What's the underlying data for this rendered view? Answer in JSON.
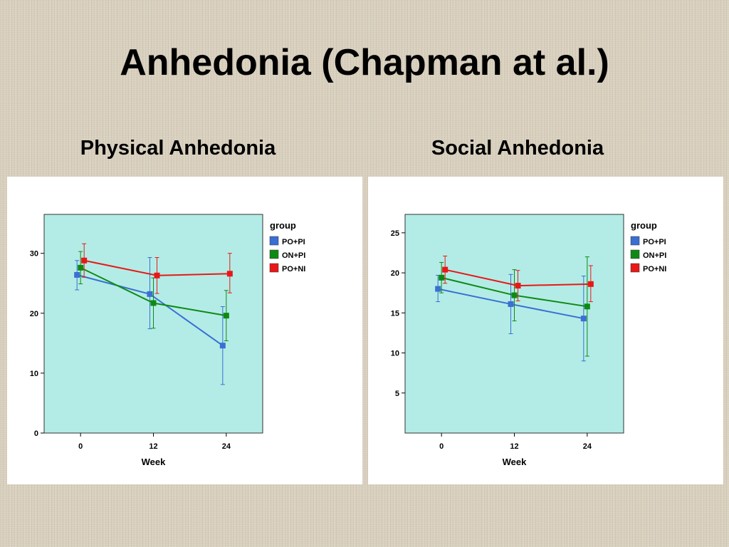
{
  "slide": {
    "title": "Anhedonia (Chapman at al.)",
    "left_heading": "Physical Anhedonia",
    "right_heading": "Social Anhedonia"
  },
  "colors": {
    "plot_background": "#b3ece6",
    "PO+PI": "#3a6fd3",
    "ON+PI": "#0e8a14",
    "PO+NI": "#e81818"
  },
  "chart_data": [
    {
      "type": "line",
      "title": "Physical Anhedonia",
      "xlabel": "Week",
      "ylabel": "",
      "x": [
        0,
        12,
        24
      ],
      "x_tick_labels": [
        "0",
        "12",
        "24"
      ],
      "xlim": [
        -6,
        30
      ],
      "ylim": [
        0,
        36.5
      ],
      "y_ticks": [
        0,
        10,
        20,
        30
      ],
      "y_tick_labels": [
        "0",
        "10",
        "20",
        "30"
      ],
      "legend_title": "group",
      "legend_position": "right",
      "grid": false,
      "series": [
        {
          "name": "PO+PI",
          "values": [
            26.4,
            23.2,
            14.6
          ],
          "lower": [
            23.9,
            17.4,
            8.1
          ],
          "upper": [
            28.8,
            29.3,
            21.1
          ]
        },
        {
          "name": "ON+PI",
          "values": [
            27.6,
            21.7,
            19.6
          ],
          "lower": [
            24.9,
            17.5,
            15.4
          ],
          "upper": [
            30.3,
            25.9,
            23.8
          ]
        },
        {
          "name": "PO+NI",
          "values": [
            28.8,
            26.3,
            26.6
          ],
          "lower": [
            26.0,
            23.3,
            23.4
          ],
          "upper": [
            31.6,
            29.3,
            30.0
          ]
        }
      ]
    },
    {
      "type": "line",
      "title": "Social Anhedonia",
      "xlabel": "Week",
      "ylabel": "",
      "x": [
        0,
        12,
        24
      ],
      "x_tick_labels": [
        "0",
        "12",
        "24"
      ],
      "xlim": [
        -6,
        30
      ],
      "ylim": [
        0,
        27.3
      ],
      "y_ticks": [
        5,
        10,
        15,
        20,
        25
      ],
      "y_tick_labels": [
        "5",
        "10",
        "15",
        "20",
        "25"
      ],
      "legend_title": "group",
      "legend_position": "right",
      "grid": false,
      "series": [
        {
          "name": "PO+PI",
          "values": [
            18.0,
            16.1,
            14.3
          ],
          "lower": [
            16.4,
            12.4,
            9.0
          ],
          "upper": [
            19.7,
            19.8,
            19.6
          ]
        },
        {
          "name": "ON+PI",
          "values": [
            19.4,
            17.2,
            15.8
          ],
          "lower": [
            17.5,
            14.0,
            9.6
          ],
          "upper": [
            21.3,
            20.4,
            22.0
          ]
        },
        {
          "name": "PO+NI",
          "values": [
            20.4,
            18.4,
            18.6
          ],
          "lower": [
            18.7,
            16.5,
            16.4
          ],
          "upper": [
            22.1,
            20.3,
            20.9
          ]
        }
      ]
    }
  ]
}
